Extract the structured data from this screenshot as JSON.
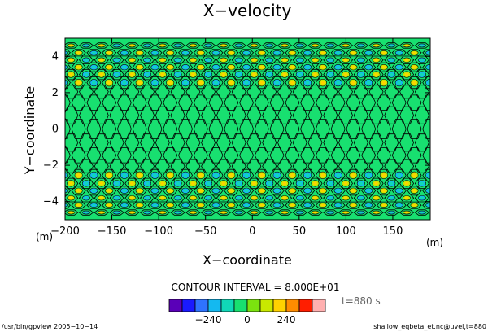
{
  "chart_data": {
    "type": "heatmap",
    "title": "X−velocity",
    "xlabel": "X−coordinate",
    "ylabel": "Y−coordinate",
    "x_unit": "(m)",
    "y_unit": "(m)",
    "xlim": [
      -200,
      190
    ],
    "ylim": [
      -5,
      5
    ],
    "xticks": [
      -200,
      -150,
      -100,
      -50,
      0,
      50,
      100,
      150
    ],
    "xtick_labels": [
      "−200",
      "−150",
      "−100",
      "−50",
      "0",
      "50",
      "100",
      "150"
    ],
    "yticks": [
      -4,
      -2,
      0,
      2,
      4
    ],
    "ytick_labels": [
      "−4",
      "−2",
      "0",
      "2",
      "4"
    ],
    "contour_interval_text": "CONTOUR INTERVAL = 8.000E+01",
    "time_text": "t=880 s",
    "colorbar": {
      "levels": [
        -400,
        -320,
        -240,
        -160,
        -80,
        0,
        80,
        160,
        240,
        320,
        400
      ],
      "labels": [
        "−240",
        "0",
        "240"
      ],
      "label_values": [
        -240,
        0,
        240
      ],
      "colors": [
        "#5a00b8",
        "#1a1aff",
        "#2f73ff",
        "#14b9f0",
        "#10d8b8",
        "#18e070",
        "#7be30f",
        "#c8e800",
        "#ffd200",
        "#ff8c00",
        "#ff1e00",
        "#ffb0b0"
      ]
    },
    "field_description_colors": {
      "background": "#18e070",
      "positive_core": "#ffd200",
      "positive_mid": "#c8e800",
      "negative_core": "#10d8b8",
      "negative_mid": "#14b9f0"
    },
    "grid": false
  },
  "footer": {
    "left": "/usr/bin/gpview  2005−10−14",
    "right": "shallow_eqbeta_et.nc@uvel,t=880"
  }
}
